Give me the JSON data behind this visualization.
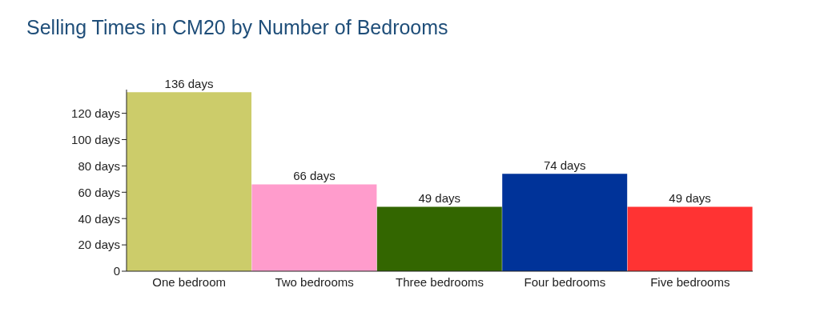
{
  "chart_data": {
    "type": "bar",
    "title": "Selling Times in CM20 by Number of Bedrooms",
    "categories": [
      "One bedroom",
      "Two bedrooms",
      "Three bedrooms",
      "Four bedrooms",
      "Five bedrooms"
    ],
    "values": [
      136,
      66,
      49,
      74,
      49
    ],
    "colors": [
      "#cccc6a",
      "#ff9ccc",
      "#336600",
      "#003399",
      "#ff3333"
    ],
    "value_labels": [
      "136 days",
      "66 days",
      "49 days",
      "74 days",
      "49 days"
    ],
    "ylim": [
      0,
      138
    ],
    "yticks": [
      0,
      {
        "value": 20,
        "label": "20 days"
      },
      {
        "value": 40,
        "label": "40 days"
      },
      {
        "value": 60,
        "label": "60 days"
      },
      {
        "value": 80,
        "label": "80 days"
      },
      {
        "value": 100,
        "label": "100 days"
      },
      {
        "value": 120,
        "label": "120 days"
      }
    ],
    "grid": false,
    "legend": false
  }
}
